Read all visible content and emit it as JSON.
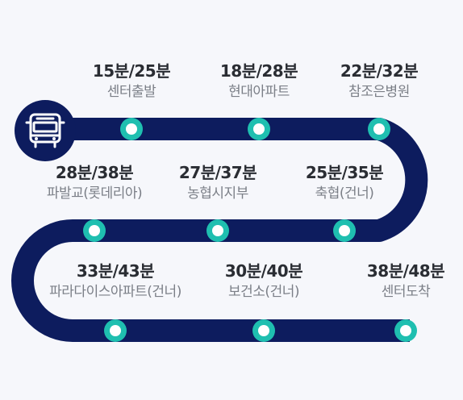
{
  "route": {
    "bus_icon": "bus-icon",
    "colors": {
      "track": "#0d1c5e",
      "stop": "#1fbfb0",
      "time": "#2a2d33",
      "name": "#7b7f87"
    },
    "stops": [
      {
        "time": "15분/25분",
        "name": "센터출발"
      },
      {
        "time": "18분/28분",
        "name": "현대아파트"
      },
      {
        "time": "22분/32분",
        "name": "참조은병원"
      },
      {
        "time": "25분/35분",
        "name": "축협(건너)"
      },
      {
        "time": "27분/37분",
        "name": "농협시지부"
      },
      {
        "time": "28분/38분",
        "name": "파발교(롯데리아)"
      },
      {
        "time": "33분/43분",
        "name": "파라다이스아파트(건너)"
      },
      {
        "time": "30분/40분",
        "name": "보건소(건너)"
      },
      {
        "time": "38분/48분",
        "name": "센터도착"
      }
    ]
  }
}
